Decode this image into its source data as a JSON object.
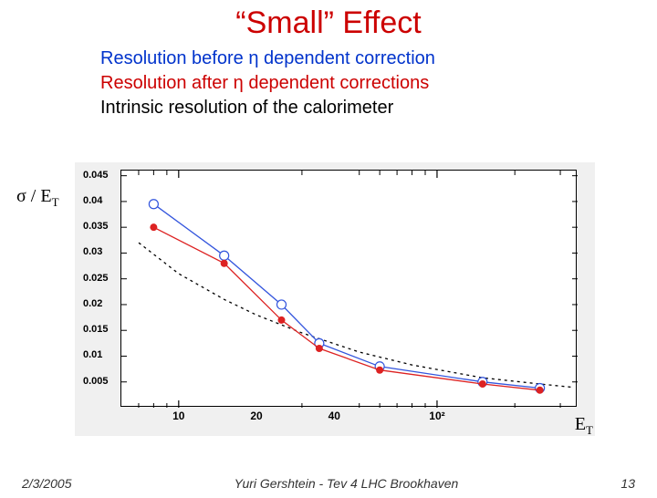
{
  "title": "“Small” Effect",
  "legend": {
    "before": {
      "text": "Resolution before η dependent correction",
      "color": "#0033cc"
    },
    "after": {
      "text": "Resolution after η dependent corrections",
      "color": "#cc0000"
    },
    "intrinsic": {
      "text": "Intrinsic resolution of the calorimeter",
      "color": "#000000"
    }
  },
  "yaxis_label_html": "σ / E",
  "yaxis_sub": "T",
  "xaxis_label": "E",
  "xaxis_sub": "T",
  "chart": {
    "type": "line-log-x",
    "background_color": "#f0f0f0",
    "plot_background": "#ffffff",
    "x_log": true,
    "x_min": 6,
    "x_max": 350,
    "y_min": 0,
    "y_max": 0.046,
    "y_ticks": [
      0.005,
      0.01,
      0.015,
      0.02,
      0.025,
      0.03,
      0.035,
      0.04,
      0.045
    ],
    "x_major_ticks": [
      10,
      100
    ],
    "x_major_labels": [
      "10",
      "10²"
    ],
    "x_minor_ticks": [
      20,
      40
    ],
    "x_minor_labels": [
      "20",
      "40"
    ],
    "series": {
      "before": {
        "color": "#3355dd",
        "marker": "circle-open",
        "marker_size": 5,
        "line_width": 1.3,
        "points": [
          [
            8,
            0.0395
          ],
          [
            15,
            0.0295
          ],
          [
            25,
            0.02
          ],
          [
            35,
            0.0125
          ],
          [
            60,
            0.008
          ],
          [
            150,
            0.005
          ],
          [
            250,
            0.0038
          ]
        ]
      },
      "after": {
        "color": "#dd2222",
        "marker": "circle-fill",
        "marker_size": 4,
        "line_width": 1.3,
        "points": [
          [
            8,
            0.035
          ],
          [
            15,
            0.028
          ],
          [
            25,
            0.017
          ],
          [
            35,
            0.0115
          ],
          [
            60,
            0.0073
          ],
          [
            150,
            0.0046
          ],
          [
            250,
            0.0034
          ]
        ]
      },
      "intrinsic": {
        "color": "#000000",
        "marker": "none",
        "dash": "3,4",
        "line_width": 1.3,
        "points": [
          [
            7,
            0.032
          ],
          [
            10,
            0.026
          ],
          [
            15,
            0.021
          ],
          [
            20,
            0.018
          ],
          [
            30,
            0.0145
          ],
          [
            50,
            0.0108
          ],
          [
            80,
            0.0083
          ],
          [
            150,
            0.0058
          ],
          [
            250,
            0.0046
          ],
          [
            330,
            0.004
          ]
        ]
      }
    }
  },
  "footer": {
    "date": "2/3/2005",
    "author": "Yuri Gershtein - Tev 4 LHC Brookhaven",
    "page": "13"
  }
}
